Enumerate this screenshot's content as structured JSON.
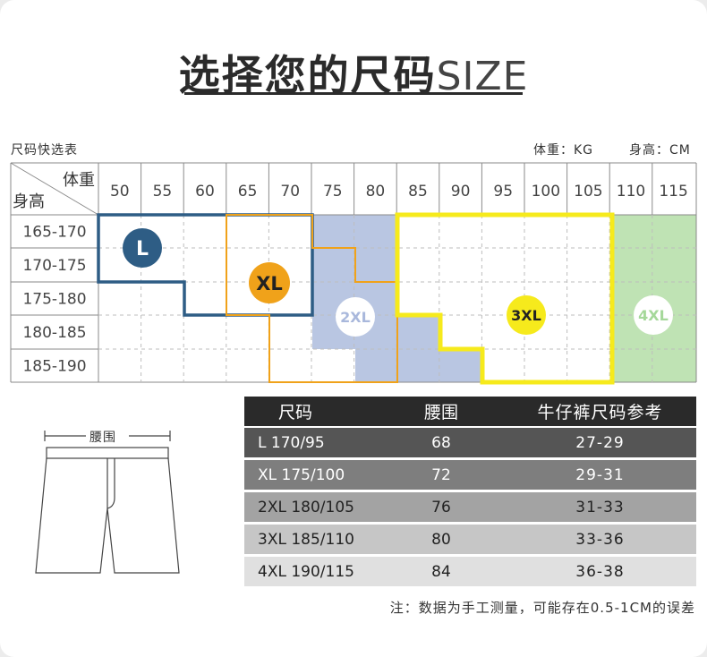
{
  "title": {
    "cn": "选择您的尺码",
    "en": "SIZE"
  },
  "quick_table_label": "尺码快选表",
  "units": {
    "weight": "体重：KG",
    "height": "身高：CM"
  },
  "grid": {
    "corner_top": "体重",
    "corner_bottom": "身高",
    "weights": [
      "50",
      "55",
      "60",
      "65",
      "70",
      "75",
      "80",
      "85",
      "90",
      "95",
      "100",
      "105",
      "110",
      "115"
    ],
    "heights": [
      "165-170",
      "170-175",
      "175-180",
      "180-185",
      "185-190"
    ],
    "zones": [
      {
        "size": "L",
        "color": "#2e5d85"
      },
      {
        "size": "XL",
        "color": "#f0a21a"
      },
      {
        "size": "2XL",
        "color": "#b9c6e2"
      },
      {
        "size": "3XL",
        "color": "#f6ea1c"
      },
      {
        "size": "4XL",
        "color": "#bfe3b4"
      }
    ]
  },
  "size_table": {
    "headers": [
      "尺码",
      "腰围",
      "牛仔裤尺码参考"
    ],
    "rows": [
      {
        "size": "L 170/95",
        "waist": "68",
        "jeans": "27-29"
      },
      {
        "size": "XL 175/100",
        "waist": "72",
        "jeans": "29-31"
      },
      {
        "size": "2XL 180/105",
        "waist": "76",
        "jeans": "31-33"
      },
      {
        "size": "3XL 185/110",
        "waist": "80",
        "jeans": "33-36"
      },
      {
        "size": "4XL 190/115",
        "waist": "84",
        "jeans": "36-38"
      }
    ],
    "row_colors": [
      "#2a2a2a",
      "#555555",
      "#7e7e7e",
      "#a3a3a3",
      "#c6c6c6",
      "#e0e0e0"
    ]
  },
  "shorts_label": "腰围",
  "note": "注：数据为手工测量，可能存在0.5-1CM的误差"
}
